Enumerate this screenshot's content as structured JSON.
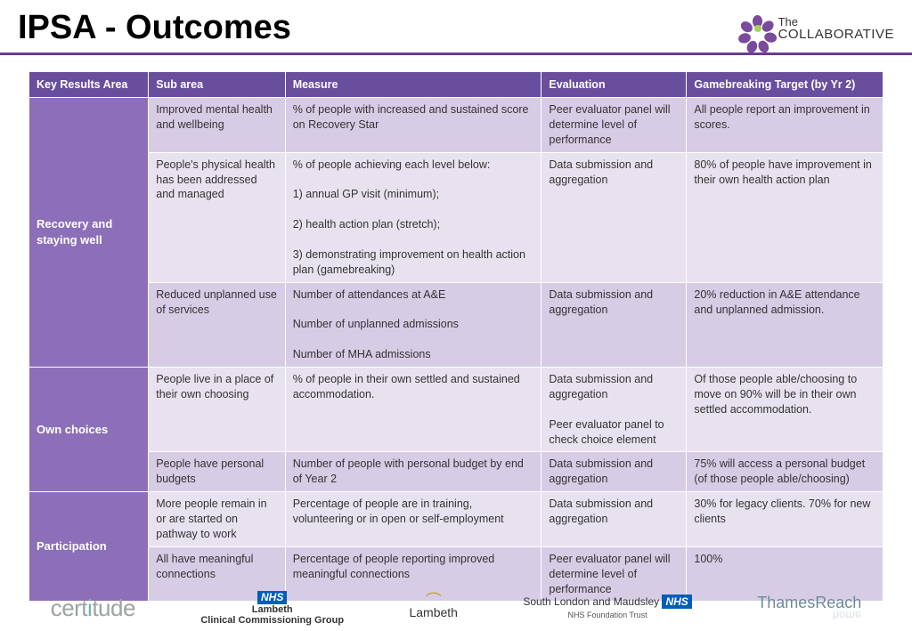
{
  "title": "IPSA - Outcomes",
  "logo": {
    "line1": "The",
    "line2": "COLLABORATIVE"
  },
  "colors": {
    "header_purple": "#6a4e9e",
    "key_area_purple": "#8c6fb8",
    "row_odd": "#d7cce6",
    "row_even": "#e8e2f0",
    "title_rule": "#6a3d8f"
  },
  "table": {
    "columns": [
      "Key Results Area",
      "Sub area",
      "Measure",
      "Evaluation",
      "Gamebreaking Target (by Yr 2)"
    ],
    "groups": [
      {
        "key_area": "Recovery and staying well",
        "rows": [
          {
            "sub": "Improved mental health and wellbeing",
            "measure": "% of people with increased and sustained score on Recovery Star",
            "eval": "Peer evaluator panel will determine level of performance",
            "target": "All people report an improvement in scores."
          },
          {
            "sub": "People's physical health has been addressed and managed",
            "measure": "% of people achieving each level below:\n\n1) annual GP visit (minimum);\n\n2) health action plan (stretch);\n\n3) demonstrating improvement on health action plan (gamebreaking)",
            "eval": "Data submission and aggregation",
            "target": "80% of people have improvement in their own health action plan"
          },
          {
            "sub": "Reduced unplanned use of services",
            "measure": "Number of attendances at A&E\n\nNumber of unplanned admissions\n\nNumber of MHA admissions",
            "eval": "Data submission and aggregation",
            "target": "20% reduction in A&E attendance and unplanned admission."
          }
        ]
      },
      {
        "key_area": "Own choices",
        "rows": [
          {
            "sub": "People live in a place of their own choosing",
            "measure": "% of people in their own settled and sustained accommodation.",
            "eval": "Data submission and aggregation\n\nPeer evaluator panel to check choice element",
            "target": "Of those people able/choosing to move on 90% will be in their own settled accommodation."
          },
          {
            "sub": "People have personal budgets",
            "measure": "Number of people with personal budget by end of Year 2",
            "eval": "Data submission and aggregation",
            "target": "75% will access a personal budget (of those people able/choosing)"
          }
        ]
      },
      {
        "key_area": "Participation",
        "rows": [
          {
            "sub": "More people remain in or are started on pathway to work",
            "measure": "Percentage of people are in training, volunteering or in open or self-employment",
            "eval": "Data submission and aggregation",
            "target": "30% for legacy clients. 70% for new clients"
          },
          {
            "sub": "All have meaningful connections",
            "measure": "Percentage of people reporting improved meaningful connections",
            "eval": "Peer evaluator panel will determine level of performance",
            "target": "100%"
          }
        ]
      }
    ]
  },
  "footer": {
    "certitude": "certitude",
    "nhs": {
      "badge": "NHS",
      "line1": "Lambeth",
      "line2": "Clinical Commissioning Group"
    },
    "lambeth": "Lambeth",
    "slam": {
      "main": "South London and Maudsley",
      "badge": "NHS",
      "sub": "NHS Foundation Trust"
    },
    "thames": {
      "t1": "Thames",
      "t2": "Reach",
      "home": "home"
    }
  }
}
